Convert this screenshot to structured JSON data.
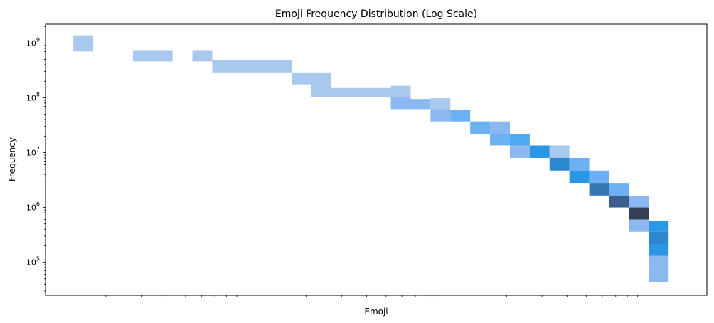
{
  "chart_data": {
    "type": "heatmap",
    "title": "Emoji Frequency Distribution (Log Scale)",
    "xlabel": "Emoji",
    "ylabel": "Frequency",
    "x_scale": "log",
    "y_scale": "log",
    "y_ticks": [
      {
        "value": 100000,
        "base": "10",
        "exp": "5"
      },
      {
        "value": 1000000,
        "base": "10",
        "exp": "6"
      },
      {
        "value": 10000000,
        "base": "10",
        "exp": "7"
      },
      {
        "value": 100000000,
        "base": "10",
        "exp": "8"
      },
      {
        "value": 1000000000,
        "base": "10",
        "exp": "9"
      }
    ],
    "ylim": [
      25000,
      2200000000
    ],
    "xlim_decades": [
      0,
      3.3
    ],
    "grid": false,
    "legend": "none",
    "colors": {
      "c1": "#a9c8ee",
      "c2": "#8bb8f0",
      "c3": "#6cb1f4",
      "c4": "#4ea8f2",
      "c5": "#2a97e6",
      "c6": "#2d87cf",
      "c7": "#3577b3",
      "c8": "#3a5f8c",
      "c9": "#333f55"
    },
    "cells": [
      {
        "x0": 0.139,
        "x1": 0.238,
        "y0": 700000000,
        "y1": 1380000000,
        "color": "c1"
      },
      {
        "x0": 0.436,
        "x1": 0.634,
        "y0": 460000000,
        "y1": 740000000,
        "color": "c1"
      },
      {
        "x0": 0.733,
        "x1": 0.832,
        "y0": 460000000,
        "y1": 740000000,
        "color": "c1"
      },
      {
        "x0": 0.832,
        "x1": 1.228,
        "y0": 290000000,
        "y1": 480000000,
        "color": "c1"
      },
      {
        "x0": 1.228,
        "x1": 1.426,
        "y0": 175000000,
        "y1": 290000000,
        "color": "c1"
      },
      {
        "x0": 1.327,
        "x1": 1.426,
        "y0": 103000000,
        "y1": 175000000,
        "color": "c1"
      },
      {
        "x0": 1.426,
        "x1": 1.723,
        "y0": 103000000,
        "y1": 155000000,
        "color": "c1"
      },
      {
        "x0": 1.723,
        "x1": 1.822,
        "y0": 103000000,
        "y1": 165000000,
        "color": "c1"
      },
      {
        "x0": 1.723,
        "x1": 1.822,
        "y0": 62000000,
        "y1": 103000000,
        "color": "c2"
      },
      {
        "x0": 1.822,
        "x1": 1.921,
        "y0": 62000000,
        "y1": 95000000,
        "color": "c2"
      },
      {
        "x0": 1.921,
        "x1": 2.02,
        "y0": 62000000,
        "y1": 98000000,
        "color": "c1"
      },
      {
        "x0": 1.921,
        "x1": 2.02,
        "y0": 37000000,
        "y1": 62000000,
        "color": "c2"
      },
      {
        "x0": 2.02,
        "x1": 2.119,
        "y0": 37000000,
        "y1": 60000000,
        "color": "c3"
      },
      {
        "x0": 2.119,
        "x1": 2.218,
        "y0": 22000000,
        "y1": 37000000,
        "color": "c3"
      },
      {
        "x0": 2.218,
        "x1": 2.317,
        "y0": 22000000,
        "y1": 37000000,
        "color": "c2"
      },
      {
        "x0": 2.218,
        "x1": 2.317,
        "y0": 13500000,
        "y1": 22000000,
        "color": "c3"
      },
      {
        "x0": 2.317,
        "x1": 2.416,
        "y0": 13500000,
        "y1": 22000000,
        "color": "c4"
      },
      {
        "x0": 2.317,
        "x1": 2.416,
        "y0": 8000000,
        "y1": 13500000,
        "color": "c2"
      },
      {
        "x0": 2.416,
        "x1": 2.515,
        "y0": 8000000,
        "y1": 13500000,
        "color": "c5"
      },
      {
        "x0": 2.515,
        "x1": 2.614,
        "y0": 8000000,
        "y1": 13500000,
        "color": "c1"
      },
      {
        "x0": 2.515,
        "x1": 2.614,
        "y0": 4700000,
        "y1": 8000000,
        "color": "c6"
      },
      {
        "x0": 2.614,
        "x1": 2.713,
        "y0": 4700000,
        "y1": 8000000,
        "color": "c3"
      },
      {
        "x0": 2.614,
        "x1": 2.713,
        "y0": 2800000,
        "y1": 4700000,
        "color": "c5"
      },
      {
        "x0": 2.713,
        "x1": 2.812,
        "y0": 2800000,
        "y1": 4700000,
        "color": "c3"
      },
      {
        "x0": 2.713,
        "x1": 2.812,
        "y0": 1650000,
        "y1": 2800000,
        "color": "c7"
      },
      {
        "x0": 2.812,
        "x1": 2.911,
        "y0": 1650000,
        "y1": 2800000,
        "color": "c3"
      },
      {
        "x0": 2.812,
        "x1": 2.911,
        "y0": 1000000,
        "y1": 1650000,
        "color": "c8"
      },
      {
        "x0": 2.911,
        "x1": 3.01,
        "y0": 1000000,
        "y1": 1600000,
        "color": "c2"
      },
      {
        "x0": 2.911,
        "x1": 3.01,
        "y0": 600000,
        "y1": 1000000,
        "color": "c9"
      },
      {
        "x0": 2.911,
        "x1": 3.01,
        "y0": 360000,
        "y1": 600000,
        "color": "c2"
      },
      {
        "x0": 3.01,
        "x1": 3.109,
        "y0": 360000,
        "y1": 570000,
        "color": "c5"
      },
      {
        "x0": 3.01,
        "x1": 3.109,
        "y0": 215000,
        "y1": 360000,
        "color": "c6"
      },
      {
        "x0": 3.01,
        "x1": 3.109,
        "y0": 130000,
        "y1": 215000,
        "color": "c5"
      },
      {
        "x0": 3.01,
        "x1": 3.109,
        "y0": 77000,
        "y1": 130000,
        "color": "c2"
      },
      {
        "x0": 3.01,
        "x1": 3.109,
        "y0": 44000,
        "y1": 77000,
        "color": "c2"
      }
    ]
  }
}
